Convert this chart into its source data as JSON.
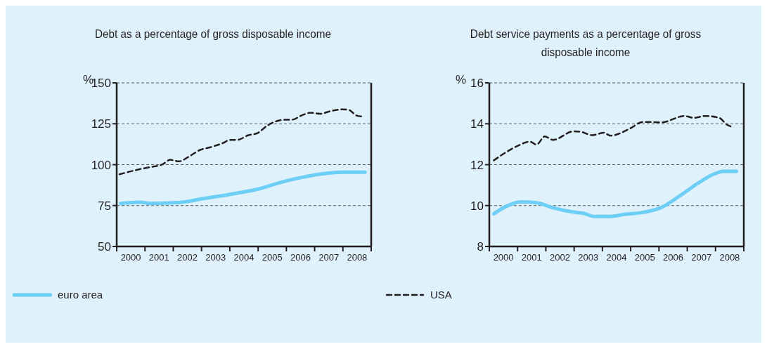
{
  "chart_data": [
    {
      "type": "line",
      "title": "Debt as a percentage of gross disposable income",
      "ylabel": "%",
      "xlim": [
        2000,
        2009
      ],
      "xticks": [
        {
          "value": 2000,
          "label": null
        },
        {
          "value": 2000.5,
          "label": "2000"
        },
        {
          "value": 2001,
          "label": null
        },
        {
          "value": 2001.5,
          "label": "2001"
        },
        {
          "value": 2002,
          "label": null
        },
        {
          "value": 2002.5,
          "label": "2002"
        },
        {
          "value": 2003,
          "label": null
        },
        {
          "value": 2003.5,
          "label": "2003"
        },
        {
          "value": 2004,
          "label": null
        },
        {
          "value": 2004.5,
          "label": "2004"
        },
        {
          "value": 2005,
          "label": null
        },
        {
          "value": 2005.5,
          "label": "2005"
        },
        {
          "value": 2006,
          "label": null
        },
        {
          "value": 2006.5,
          "label": "2006"
        },
        {
          "value": 2007,
          "label": null
        },
        {
          "value": 2007.5,
          "label": "2007"
        },
        {
          "value": 2008,
          "label": null
        },
        {
          "value": 2008.5,
          "label": "2008"
        },
        {
          "value": 2009,
          "label": null
        }
      ],
      "ylim": [
        50,
        150
      ],
      "yticks": [
        50,
        75,
        100,
        125,
        150
      ],
      "grid": "y",
      "legend": "bottom",
      "marker": "none",
      "series": [
        {
          "name": "euro area",
          "color": "#6dcff6",
          "line_style": "solid",
          "x": [
            2000.14,
            2000.83,
            2001.24,
            2002.3,
            2003.03,
            2004.09,
            2005.07,
            2005.72,
            2006.54,
            2007.19,
            2007.92,
            2008.78
          ],
          "values": [
            76.3,
            77,
            76.3,
            77,
            79.2,
            82.1,
            85.4,
            88.8,
            92.2,
            94.2,
            95.4,
            95.4
          ]
        },
        {
          "color": "#231f20",
          "line_style": "dashed",
          "x": [
            2000.1,
            2000.83,
            2001.15,
            2001.64,
            2001.89,
            2002.2,
            2002.54,
            2002.95,
            2003.28,
            2003.77,
            2004.0,
            2004.25,
            2004.66,
            2004.99,
            2005.31,
            2005.64,
            2005.96,
            2006.2,
            2006.53,
            2006.86,
            2007.19,
            2007.6,
            2008.0,
            2008.2,
            2008.49,
            2008.7
          ],
          "values": [
            94.1,
            97.3,
            98.4,
            100.4,
            103,
            102,
            104.8,
            109,
            110.5,
            113.3,
            115.1,
            115.1,
            118,
            119.4,
            123.7,
            126.5,
            127.5,
            127.5,
            130,
            131.8,
            131.1,
            132.9,
            133.8,
            133.5,
            130,
            129.4
          ]
        }
      ]
    },
    {
      "type": "line",
      "title": "Debt service payments as a percentage of gross disposable income",
      "ylabel": "%",
      "xlim": [
        2000,
        2009
      ],
      "xticks": [
        {
          "value": 2000,
          "label": null
        },
        {
          "value": 2000.5,
          "label": "2000"
        },
        {
          "value": 2001,
          "label": null
        },
        {
          "value": 2001.5,
          "label": "2001"
        },
        {
          "value": 2002,
          "label": null
        },
        {
          "value": 2002.5,
          "label": "2002"
        },
        {
          "value": 2003,
          "label": null
        },
        {
          "value": 2003.5,
          "label": "2003"
        },
        {
          "value": 2004,
          "label": null
        },
        {
          "value": 2004.5,
          "label": "2004"
        },
        {
          "value": 2005,
          "label": null
        },
        {
          "value": 2005.5,
          "label": "2005"
        },
        {
          "value": 2006,
          "label": null
        },
        {
          "value": 2006.5,
          "label": "2006"
        },
        {
          "value": 2007,
          "label": null
        },
        {
          "value": 2007.5,
          "label": "2007"
        },
        {
          "value": 2008,
          "label": null
        },
        {
          "value": 2008.5,
          "label": "2008"
        },
        {
          "value": 2009,
          "label": null
        }
      ],
      "ylim": [
        8,
        16
      ],
      "yticks": [
        8,
        10,
        12,
        14,
        16
      ],
      "grid": "y",
      "legend": "bottom",
      "marker": "none",
      "series": [
        {
          "color": "#6dcff6",
          "line_style": "solid",
          "x": [
            2000.16,
            2000.61,
            2001.1,
            2001.67,
            2002.25,
            2002.98,
            2003.31,
            2003.72,
            2004.29,
            2004.78,
            2005.44,
            2006.09,
            2006.74,
            2007.39,
            2007.88,
            2008.29,
            2008.74
          ],
          "values": [
            9.6,
            9.97,
            10.18,
            10.14,
            9.89,
            9.68,
            9.63,
            9.47,
            9.47,
            9.57,
            9.67,
            9.91,
            10.48,
            11.1,
            11.5,
            11.67,
            11.67
          ]
        },
        {
          "name": "USA",
          "color": "#231f20",
          "line_style": "dashed",
          "x": [
            2000.16,
            2001.02,
            2001.43,
            2001.67,
            2001.96,
            2002.25,
            2002.98,
            2003.23,
            2003.64,
            2004.05,
            2004.29,
            2004.95,
            2005.44,
            2006.09,
            2006.9,
            2007.23,
            2007.64,
            2008.13,
            2008.41,
            2008.62
          ],
          "values": [
            12.21,
            12.93,
            13.13,
            12.98,
            13.38,
            13.21,
            13.63,
            13.61,
            13.44,
            13.56,
            13.42,
            13.75,
            14.09,
            14.07,
            14.38,
            14.29,
            14.38,
            14.29,
            13.95,
            13.84
          ]
        }
      ]
    }
  ]
}
